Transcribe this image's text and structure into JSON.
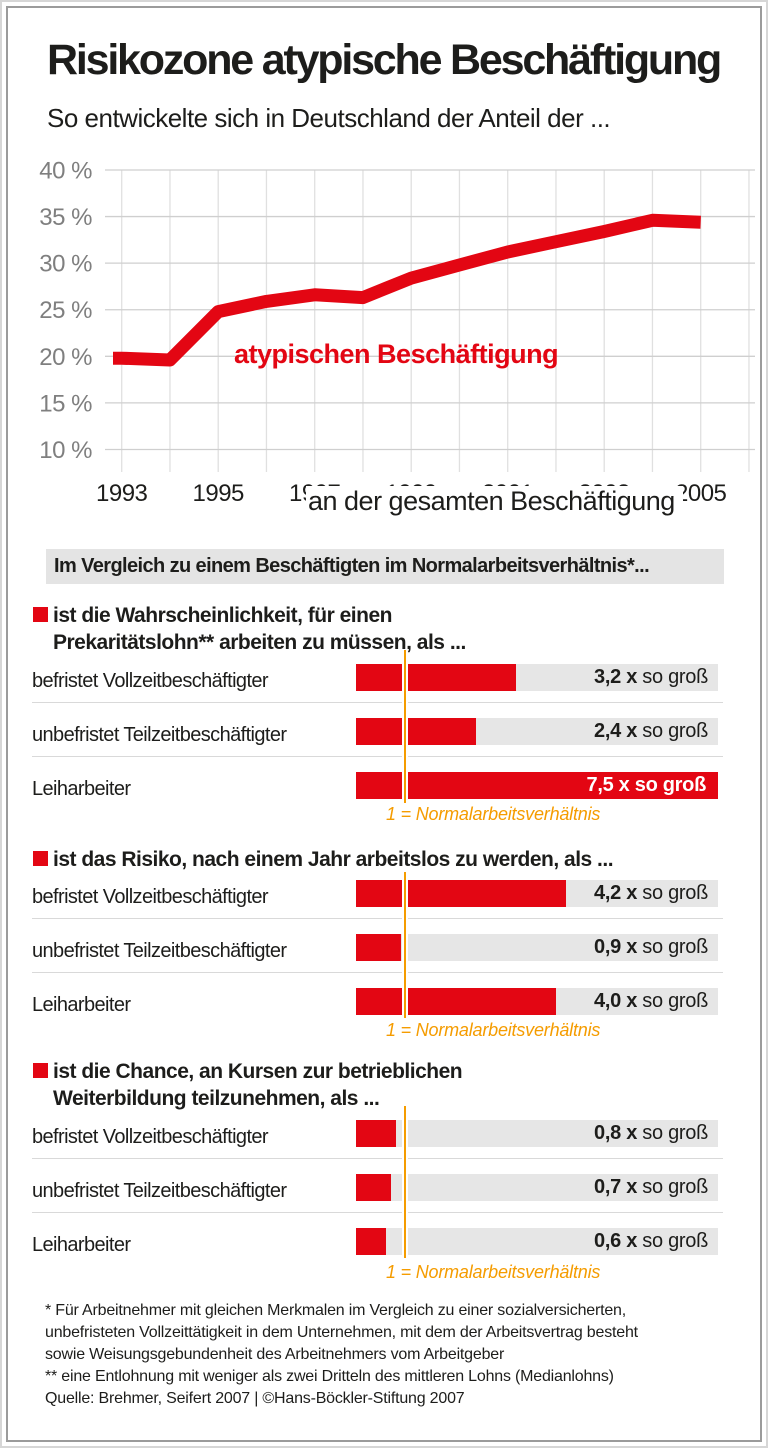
{
  "page": {
    "title": "Risikozone atypische Beschäftigung",
    "subtitle": "So entwickelte sich in Deutschland der Anteil der ..."
  },
  "chart_data": [
    {
      "type": "line",
      "title": "Anteil der atypischen Beschäftigung an der gesamten Beschäftigung in Deutschland",
      "x": [
        1993,
        1994,
        1995,
        1996,
        1997,
        1998,
        1999,
        2000,
        2001,
        2002,
        2003,
        2004,
        2005
      ],
      "values": [
        19.8,
        19.6,
        24.8,
        25.9,
        26.6,
        26.3,
        28.4,
        29.8,
        31.2,
        32.3,
        33.4,
        34.6,
        34.4
      ],
      "unit": "%",
      "ylim": [
        10,
        40
      ],
      "ytick_values": [
        40,
        35,
        30,
        25,
        20,
        15,
        10
      ],
      "ytick_labels": [
        "40 %",
        "35 %",
        "30 %",
        "25 %",
        "20 %",
        "15 %",
        "10 %"
      ],
      "xtick_labels": [
        "1993",
        "1995",
        "1997",
        "1999",
        "2001",
        "2003",
        "2005"
      ],
      "grid": true,
      "line_color": "#e30613",
      "annotation_red": "atypischen Beschäftigung",
      "annotation_black": "an der gesamten Beschäftigung"
    },
    {
      "type": "bar",
      "title": "Im Vergleich zu einem Beschäftigten im Normalarbeitsverhältnis",
      "categories": [
        "befristet Vollzeitbeschäftigter",
        "unbefristet Teilzeitbeschäftigter",
        "Leiharbeiter"
      ],
      "series": [
        {
          "name": "Wahrscheinlichkeit Prekaritätslohn",
          "values": [
            3.2,
            2.4,
            7.5
          ]
        },
        {
          "name": "Risiko nach einem Jahr arbeitslos",
          "values": [
            4.2,
            0.9,
            4.0
          ]
        },
        {
          "name": "Chance auf betriebliche Weiterbildung",
          "values": [
            0.8,
            0.7,
            0.6
          ]
        }
      ],
      "reference_value": 1,
      "reference_label": "1 = Normalarbeitsverhältnis",
      "bar_color": "#e30613"
    }
  ],
  "comparison": {
    "header": "Im Vergleich zu einem Beschäftigten im Normalarbeitsverhältnis*...",
    "axis_note": "1 = Normalarbeitsverhältnis",
    "sections": [
      {
        "title_lines": [
          "ist die Wahrscheinlichkeit, für einen",
          "Prekaritätslohn** arbeiten zu müssen, als ..."
        ],
        "rows": [
          {
            "label": "befristet Vollzeitbeschäftigter",
            "value": 3.2,
            "value_label": "3,2 x",
            "suffix": "so groß"
          },
          {
            "label": "unbefristet Teilzeitbeschäftigter",
            "value": 2.4,
            "value_label": "2,4 x",
            "suffix": "so groß"
          },
          {
            "label": "Leiharbeiter",
            "value": 7.5,
            "value_label": "7,5 x",
            "suffix": "so groß"
          }
        ]
      },
      {
        "title_lines": [
          "ist das Risiko, nach einem Jahr arbeitslos zu werden, als ..."
        ],
        "rows": [
          {
            "label": "befristet Vollzeitbeschäftigter",
            "value": 4.2,
            "value_label": "4,2 x",
            "suffix": "so groß"
          },
          {
            "label": "unbefristet Teilzeitbeschäftigter",
            "value": 0.9,
            "value_label": "0,9 x",
            "suffix": "so groß"
          },
          {
            "label": "Leiharbeiter",
            "value": 4.0,
            "value_label": "4,0 x",
            "suffix": "so groß"
          }
        ]
      },
      {
        "title_lines": [
          "ist die Chance, an Kursen zur betrieblichen",
          "Weiterbildung teilzunehmen, als ..."
        ],
        "rows": [
          {
            "label": "befristet Vollzeitbeschäftigter",
            "value": 0.8,
            "value_label": "0,8 x",
            "suffix": "so groß"
          },
          {
            "label": "unbefristet Teilzeitbeschäftigter",
            "value": 0.7,
            "value_label": "0,7 x",
            "suffix": "so groß"
          },
          {
            "label": "Leiharbeiter",
            "value": 0.6,
            "value_label": "0,6 x",
            "suffix": "so groß"
          }
        ]
      }
    ]
  },
  "footnotes": [
    "* Für Arbeitnehmer mit gleichen Merkmalen im Vergleich zu einer sozialversicherten,",
    "unbefristeten Vollzeittätigkeit in dem Unternehmen, mit dem der Arbeitsvertrag besteht",
    "sowie Weisungsgebundenheit des Arbeitnehmers vom Arbeitgeber",
    "** eine Entlohnung mit weniger als zwei Dritteln des mittleren Lohns (Medianlohns)"
  ],
  "source": "Quelle: Brehmer, Seifert 2007 | ©Hans-Böckler-Stiftung 2007",
  "colors": {
    "accent_red": "#e30613",
    "accent_orange": "#f59c00",
    "track_gray": "#e6e6e6",
    "band_gray": "#e4e4e4",
    "grid_gray": "#cfcfcf",
    "frame_gray": "#9b9b9b"
  }
}
